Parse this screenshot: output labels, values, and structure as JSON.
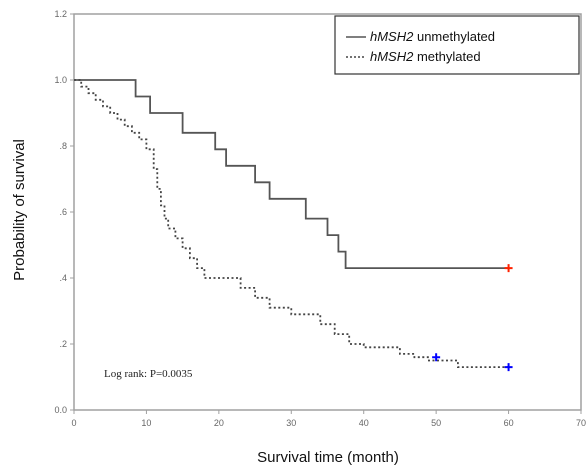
{
  "chart_data": {
    "type": "line",
    "xlabel": "Survival time (month)",
    "ylabel": "Probability of survival",
    "xlim": [
      0,
      70
    ],
    "ylim": [
      0,
      1.2
    ],
    "x_ticks": [
      {
        "value": 0,
        "label": "0"
      },
      {
        "value": 10,
        "label": "10"
      },
      {
        "value": 20,
        "label": "20"
      },
      {
        "value": 30,
        "label": "30"
      },
      {
        "value": 40,
        "label": "40"
      },
      {
        "value": 50,
        "label": "50"
      },
      {
        "value": 60,
        "label": "60"
      },
      {
        "value": 70,
        "label": "70"
      }
    ],
    "y_ticks": [
      {
        "value": 0,
        "label": "0.0"
      },
      {
        "value": 0.2,
        "label": ".2"
      },
      {
        "value": 0.4,
        "label": ".4"
      },
      {
        "value": 0.6,
        "label": ".6"
      },
      {
        "value": 0.8,
        "label": ".8"
      },
      {
        "value": 1.0,
        "label": "1.0"
      },
      {
        "value": 1.2,
        "label": "1.2"
      }
    ],
    "grid": false,
    "legend_position": "top-right",
    "annotation": "Log rank:    P=0.0035",
    "series": [
      {
        "gene": "hMSH2",
        "name_rest": " unmethylated",
        "style": "solid",
        "color": "#555555",
        "censor_color": "#ff2200",
        "steps": [
          [
            0,
            1.0
          ],
          [
            8.5,
            0.95
          ],
          [
            10.5,
            0.9
          ],
          [
            15,
            0.84
          ],
          [
            19.5,
            0.79
          ],
          [
            21,
            0.74
          ],
          [
            25,
            0.69
          ],
          [
            27,
            0.64
          ],
          [
            32,
            0.58
          ],
          [
            35,
            0.53
          ],
          [
            36.5,
            0.48
          ],
          [
            37.5,
            0.43
          ],
          [
            60,
            0.43
          ]
        ],
        "censored": [
          [
            60,
            0.43
          ]
        ]
      },
      {
        "gene": "hMSH2",
        "name_rest": " methylated",
        "style": "dotted",
        "color": "#444444",
        "censor_color": "#0000ff",
        "steps": [
          [
            0,
            1.0
          ],
          [
            1,
            0.98
          ],
          [
            2,
            0.96
          ],
          [
            3,
            0.94
          ],
          [
            4,
            0.92
          ],
          [
            5,
            0.9
          ],
          [
            6,
            0.88
          ],
          [
            7,
            0.86
          ],
          [
            8,
            0.84
          ],
          [
            9,
            0.82
          ],
          [
            10,
            0.79
          ],
          [
            11,
            0.73
          ],
          [
            11.5,
            0.67
          ],
          [
            12,
            0.62
          ],
          [
            12.5,
            0.58
          ],
          [
            13,
            0.55
          ],
          [
            14,
            0.52
          ],
          [
            15,
            0.49
          ],
          [
            16,
            0.46
          ],
          [
            17,
            0.43
          ],
          [
            18,
            0.4
          ],
          [
            23,
            0.37
          ],
          [
            25,
            0.34
          ],
          [
            27,
            0.31
          ],
          [
            30,
            0.29
          ],
          [
            34,
            0.26
          ],
          [
            36,
            0.23
          ],
          [
            38,
            0.2
          ],
          [
            40,
            0.19
          ],
          [
            45,
            0.17
          ],
          [
            47,
            0.16
          ],
          [
            49,
            0.15
          ],
          [
            53,
            0.13
          ],
          [
            60,
            0.13
          ]
        ],
        "censored": [
          [
            50,
            0.16
          ],
          [
            60,
            0.13
          ]
        ]
      }
    ]
  }
}
